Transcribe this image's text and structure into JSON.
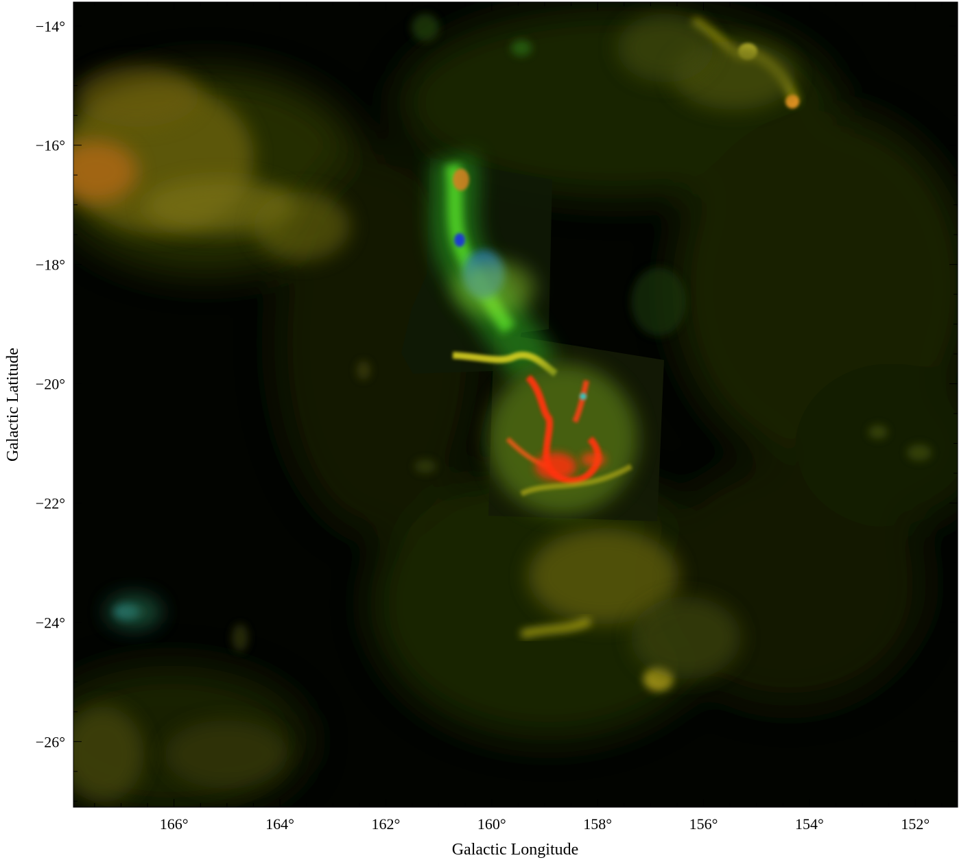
{
  "figure": {
    "xlabel": "Galactic Longitude",
    "ylabel": "Galactic Latitude",
    "x_ticks": [
      {
        "value": 166,
        "label": "166°"
      },
      {
        "value": 164,
        "label": "164°"
      },
      {
        "value": 162,
        "label": "162°"
      },
      {
        "value": 160,
        "label": "160°"
      },
      {
        "value": 158,
        "label": "158°"
      },
      {
        "value": 156,
        "label": "156°"
      },
      {
        "value": 154,
        "label": "154°"
      },
      {
        "value": 152,
        "label": "152°"
      }
    ],
    "y_ticks": [
      {
        "value": -14,
        "label": "−14°"
      },
      {
        "value": -16,
        "label": "−16°"
      },
      {
        "value": -18,
        "label": "−18°"
      },
      {
        "value": -20,
        "label": "−20°"
      },
      {
        "value": -22,
        "label": "−22°"
      },
      {
        "value": -24,
        "label": "−24°"
      },
      {
        "value": -26,
        "label": "−26°"
      }
    ],
    "xlim": [
      167.9,
      151.2
    ],
    "ylim": [
      -27.1,
      -13.6
    ],
    "colors": {
      "background": "#000000",
      "diffuse": "#3a4a05",
      "yellow_emission": "#b8b40e",
      "orange_emission": "#c87818",
      "green_emission": "#3fce24",
      "blue_emission": "#1a55c8",
      "red_emission": "#ff2a10"
    }
  }
}
